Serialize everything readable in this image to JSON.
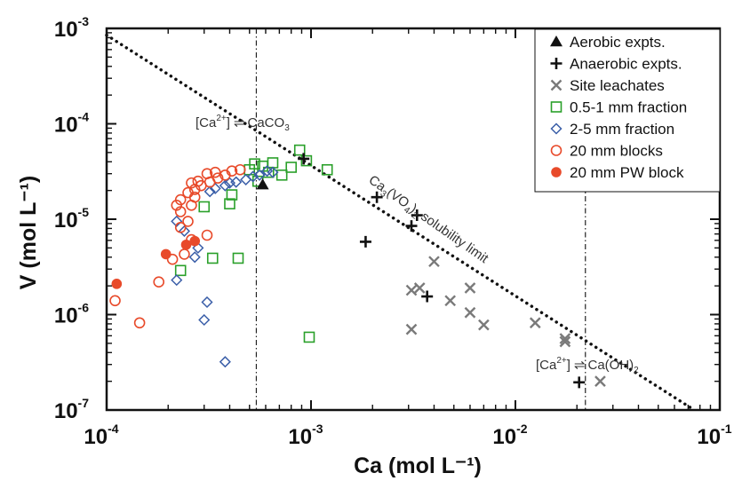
{
  "chart_data": {
    "type": "scatter",
    "title": "",
    "xlabel": "Ca (mol L⁻¹)",
    "ylabel": "V (mol L⁻¹)",
    "xscale": "log",
    "yscale": "log",
    "xlim": [
      0.0001,
      0.1
    ],
    "ylim": [
      1e-07,
      0.001
    ],
    "x_tick_labels": [
      "10-4",
      "10-3",
      "10-2",
      "10-1"
    ],
    "y_tick_labels": [
      "10-3",
      "10-4",
      "10-5",
      "10-6",
      "10-7"
    ],
    "legend_position": "top-right",
    "grid": false,
    "series": [
      {
        "name": "Aerobic expts.",
        "marker": "filled-triangle",
        "color": "#111111",
        "points": [
          [
            0.00058,
            2.3e-05
          ]
        ]
      },
      {
        "name": "Anaerobic expts.",
        "marker": "plus",
        "color": "#111111",
        "points": [
          [
            0.00092,
            4.3e-05
          ],
          [
            0.0021,
            1.7e-05
          ],
          [
            0.0033,
            1.1e-05
          ],
          [
            0.0031,
            8.5e-06
          ],
          [
            0.00185,
            5.8e-06
          ],
          [
            0.0037,
            1.55e-06
          ],
          [
            0.0205,
            1.95e-07
          ]
        ]
      },
      {
        "name": "Site leachates",
        "marker": "x",
        "color": "#7a7a7a",
        "points": [
          [
            0.004,
            3.6e-06
          ],
          [
            0.0031,
            1.8e-06
          ],
          [
            0.0034,
            1.9e-06
          ],
          [
            0.0048,
            1.4e-06
          ],
          [
            0.006,
            1.9e-06
          ],
          [
            0.006,
            1.05e-06
          ],
          [
            0.007,
            7.8e-07
          ],
          [
            0.0031,
            7e-07
          ],
          [
            0.0125,
            8.2e-07
          ],
          [
            0.0175,
            5.6e-07
          ],
          [
            0.0175,
            5.2e-07
          ],
          [
            0.026,
            2e-07
          ]
        ]
      },
      {
        "name": "0.5-1 mm fraction",
        "marker": "open-square",
        "color": "#2aa02a",
        "points": [
          [
            0.00053,
            3.8e-05
          ],
          [
            0.00058,
            3.6e-05
          ],
          [
            0.00065,
            3.9e-05
          ],
          [
            0.00062,
            3.1e-05
          ],
          [
            0.0005,
            3.3e-05
          ],
          [
            0.00088,
            5.3e-05
          ],
          [
            0.00095,
            4.1e-05
          ],
          [
            0.0008,
            3.5e-05
          ],
          [
            0.0012,
            3.3e-05
          ],
          [
            0.00072,
            2.9e-05
          ],
          [
            0.00055,
            2.5e-05
          ],
          [
            0.00041,
            1.8e-05
          ],
          [
            0.0004,
            1.45e-05
          ],
          [
            0.0003,
            1.35e-05
          ],
          [
            0.00033,
            3.9e-06
          ],
          [
            0.00044,
            3.9e-06
          ],
          [
            0.00023,
            2.9e-06
          ],
          [
            0.00098,
            5.8e-07
          ]
        ]
      },
      {
        "name": "2-5 mm fraction",
        "marker": "open-diamond",
        "color": "#3a5ea8",
        "points": [
          [
            0.00032,
            1.95e-05
          ],
          [
            0.00034,
            2.1e-05
          ],
          [
            0.00038,
            2.25e-05
          ],
          [
            0.0004,
            2.4e-05
          ],
          [
            0.00043,
            2.45e-05
          ],
          [
            0.00048,
            2.6e-05
          ],
          [
            0.00052,
            2.8e-05
          ],
          [
            0.00056,
            2.9e-05
          ],
          [
            0.00061,
            3.2e-05
          ],
          [
            0.00065,
            3.1e-05
          ],
          [
            0.00022,
            9.5e-06
          ],
          [
            0.00024,
            7.5e-06
          ],
          [
            0.00028,
            5e-06
          ],
          [
            0.00027,
            4e-06
          ],
          [
            0.00022,
            2.3e-06
          ],
          [
            0.00031,
            1.35e-06
          ],
          [
            0.0003,
            8.8e-07
          ],
          [
            0.00038,
            3.2e-07
          ]
        ]
      },
      {
        "name": "20 mm blocks",
        "marker": "open-circle",
        "color": "#e84a2a",
        "points": [
          [
            0.00011,
            1.4e-06
          ],
          [
            0.000145,
            8.2e-07
          ],
          [
            0.00018,
            2.2e-06
          ],
          [
            0.00021,
            3.8e-06
          ],
          [
            0.00024,
            4.3e-06
          ],
          [
            0.00031,
            6.8e-06
          ],
          [
            0.00026,
            6.1e-06
          ],
          [
            0.00023,
            8.2e-06
          ],
          [
            0.00025,
            9.5e-06
          ],
          [
            0.00023,
            1.2e-05
          ],
          [
            0.00022,
            1.4e-05
          ],
          [
            0.00026,
            1.4e-05
          ],
          [
            0.00023,
            1.6e-05
          ],
          [
            0.00027,
            1.7e-05
          ],
          [
            0.00025,
            1.9e-05
          ],
          [
            0.00027,
            2.05e-05
          ],
          [
            0.00029,
            2.25e-05
          ],
          [
            0.00032,
            2.45e-05
          ],
          [
            0.00035,
            2.7e-05
          ],
          [
            0.00038,
            2.9e-05
          ],
          [
            0.00031,
            3e-05
          ],
          [
            0.00034,
            3.1e-05
          ],
          [
            0.00041,
            3.2e-05
          ],
          [
            0.00045,
            3.3e-05
          ],
          [
            0.00028,
            2.5e-05
          ],
          [
            0.00026,
            2.4e-05
          ]
        ]
      },
      {
        "name": "20 mm PW block",
        "marker": "filled-circle",
        "color": "#e84a2a",
        "points": [
          [
            0.000112,
            2.1e-06
          ],
          [
            0.000195,
            4.3e-06
          ],
          [
            0.000245,
            5.4e-06
          ],
          [
            0.00027,
            5.9e-06
          ]
        ]
      }
    ],
    "reference_lines": [
      {
        "kind": "solubility-limit",
        "style": "dotted",
        "points": [
          [
            0.0001,
            0.00085
          ],
          [
            0.075,
            1e-07
          ]
        ]
      },
      {
        "kind": "vertical",
        "style": "dash-dot",
        "x": 0.00054
      },
      {
        "kind": "vertical",
        "style": "dash-dot",
        "x": 0.022
      }
    ],
    "annotations": {
      "caco3": {
        "bracket": "[Ca",
        "charge": "2+",
        "close": "]",
        "arrow": "⇌",
        "product": "CaCO",
        "subscript": "3"
      },
      "caoh2": {
        "bracket": "[Ca",
        "charge": "2+",
        "close": "]",
        "arrow": "⇌",
        "product": "Ca(OH)",
        "subscript": "2"
      },
      "solubility": {
        "part1": "Ca",
        "sub1": "3",
        "part2": "(VO",
        "sub2": "4",
        "part3": ")",
        "sub3": "2",
        "part4": " solubility limit"
      }
    }
  }
}
